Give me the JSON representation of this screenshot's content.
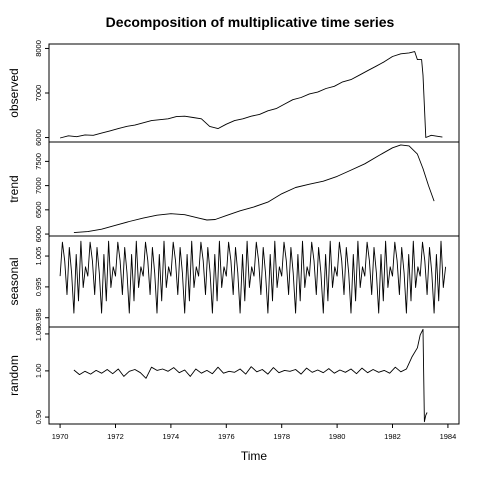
{
  "chart_data": {
    "type": "line",
    "title": "Decomposition of multiplicative time series",
    "xlabel": "Time",
    "xlim": [
      1969.6,
      1984.4
    ],
    "x_ticks": [
      "1970",
      "1972",
      "1974",
      "1976",
      "1978",
      "1980",
      "1982",
      "1984"
    ],
    "x_tick_values": [
      1970,
      1972,
      1974,
      1976,
      1978,
      1980,
      1982,
      1984
    ],
    "grid": false,
    "panels": [
      {
        "name": "observed",
        "ylabel": "observed",
        "ylim": [
          5900,
          8100
        ],
        "y_ticks": [
          "6000",
          "7000",
          "8000"
        ],
        "y_tick_values": [
          6000,
          7000,
          8000
        ],
        "x": [
          1970.0,
          1970.3,
          1970.6,
          1970.9,
          1971.2,
          1971.5,
          1971.8,
          1972.1,
          1972.4,
          1972.7,
          1973.0,
          1973.3,
          1973.6,
          1973.9,
          1974.2,
          1974.5,
          1974.8,
          1975.1,
          1975.4,
          1975.7,
          1976.0,
          1976.3,
          1976.6,
          1976.9,
          1977.2,
          1977.5,
          1977.8,
          1978.1,
          1978.4,
          1978.7,
          1979.0,
          1979.3,
          1979.6,
          1979.9,
          1980.2,
          1980.5,
          1980.8,
          1981.1,
          1981.4,
          1981.7,
          1982.0,
          1982.3,
          1982.6,
          1982.8,
          1982.9,
          1983.05,
          1983.1,
          1983.2,
          1983.4,
          1983.6,
          1983.8
        ],
        "values": [
          5990,
          6040,
          6020,
          6060,
          6050,
          6100,
          6150,
          6200,
          6250,
          6280,
          6330,
          6380,
          6400,
          6420,
          6470,
          6480,
          6450,
          6420,
          6250,
          6200,
          6300,
          6380,
          6420,
          6480,
          6520,
          6600,
          6650,
          6750,
          6850,
          6900,
          6980,
          7020,
          7100,
          7150,
          7250,
          7300,
          7400,
          7500,
          7600,
          7700,
          7820,
          7880,
          7900,
          7930,
          7750,
          7750,
          7400,
          6000,
          6050,
          6030,
          6010
        ]
      },
      {
        "name": "trend",
        "ylabel": "trend",
        "ylim": [
          5960,
          7900
        ],
        "y_ticks": [
          "6000",
          "6500",
          "7000",
          "7500"
        ],
        "y_tick_values": [
          6000,
          6500,
          7000,
          7500
        ],
        "x": [
          1970.5,
          1971.0,
          1971.5,
          1972.0,
          1972.5,
          1973.0,
          1973.5,
          1974.0,
          1974.5,
          1975.0,
          1975.3,
          1975.6,
          1976.0,
          1976.5,
          1977.0,
          1977.5,
          1978.0,
          1978.5,
          1979.0,
          1979.5,
          1980.0,
          1980.5,
          1981.0,
          1981.5,
          1982.0,
          1982.3,
          1982.6,
          1982.9,
          1983.1,
          1983.3,
          1983.5
        ],
        "values": [
          6030,
          6050,
          6100,
          6180,
          6260,
          6330,
          6390,
          6420,
          6400,
          6330,
          6290,
          6300,
          6380,
          6480,
          6560,
          6660,
          6830,
          6960,
          7030,
          7090,
          7190,
          7320,
          7450,
          7620,
          7780,
          7840,
          7820,
          7650,
          7350,
          7000,
          6680
        ]
      },
      {
        "name": "seasonal",
        "ylabel": "seasonal",
        "ylim": [
          0.982,
          1.0115
        ],
        "y_ticks": [
          "0.985",
          "0.995",
          "1.005"
        ],
        "y_tick_values": [
          0.985,
          0.995,
          1.005
        ],
        "x_start": 1970.0,
        "step_years": 0.0833333,
        "cycles": 14,
        "pattern": [
          0.9985,
          1.0095,
          1.0035,
          0.9925,
          1.0078,
          0.9995,
          0.9865,
          1.0055,
          0.9905,
          1.0098,
          0.9948,
          1.0015
        ],
        "values_note_visible": ""
      },
      {
        "name": "random",
        "ylabel": "random",
        "ylim": [
          0.885,
          1.095
        ],
        "y_ticks": [
          "0.90",
          "1.00",
          "1.08"
        ],
        "y_tick_values": [
          0.9,
          1.0,
          1.08
        ],
        "x": [
          1970.5,
          1970.7,
          1970.9,
          1971.1,
          1971.3,
          1971.5,
          1971.7,
          1971.9,
          1972.1,
          1972.3,
          1972.5,
          1972.7,
          1972.9,
          1973.1,
          1973.3,
          1973.5,
          1973.7,
          1973.9,
          1974.1,
          1974.3,
          1974.5,
          1974.7,
          1974.9,
          1975.1,
          1975.3,
          1975.5,
          1975.7,
          1975.9,
          1976.1,
          1976.3,
          1976.5,
          1976.7,
          1976.9,
          1977.1,
          1977.3,
          1977.5,
          1977.7,
          1977.9,
          1978.1,
          1978.3,
          1978.5,
          1978.7,
          1978.9,
          1979.1,
          1979.3,
          1979.5,
          1979.7,
          1979.9,
          1980.1,
          1980.3,
          1980.5,
          1980.7,
          1980.9,
          1981.1,
          1981.3,
          1981.5,
          1981.7,
          1981.9,
          1982.1,
          1982.3,
          1982.5,
          1982.7,
          1982.9,
          1983.0,
          1983.1,
          1983.15,
          1983.2,
          1983.25
        ],
        "values": [
          1.002,
          0.992,
          0.999,
          0.993,
          1.001,
          0.995,
          1.003,
          0.994,
          1.004,
          0.988,
          0.999,
          1.003,
          0.996,
          0.984,
          1.008,
          1.001,
          1.004,
          0.999,
          1.007,
          0.996,
          1.002,
          0.988,
          1.004,
          0.995,
          1.001,
          0.994,
          1.008,
          0.995,
          0.999,
          0.997,
          1.004,
          0.993,
          1.009,
          0.998,
          1.003,
          0.993,
          1.007,
          0.996,
          1.001,
          0.999,
          1.003,
          0.993,
          1.006,
          0.997,
          1.002,
          0.996,
          1.005,
          0.995,
          1.002,
          0.997,
          1.004,
          0.994,
          1.006,
          0.996,
          1.003,
          0.997,
          1.001,
          0.995,
          1.008,
          0.998,
          1.004,
          1.03,
          1.05,
          1.078,
          1.09,
          0.89,
          0.904,
          0.91
        ]
      }
    ]
  }
}
